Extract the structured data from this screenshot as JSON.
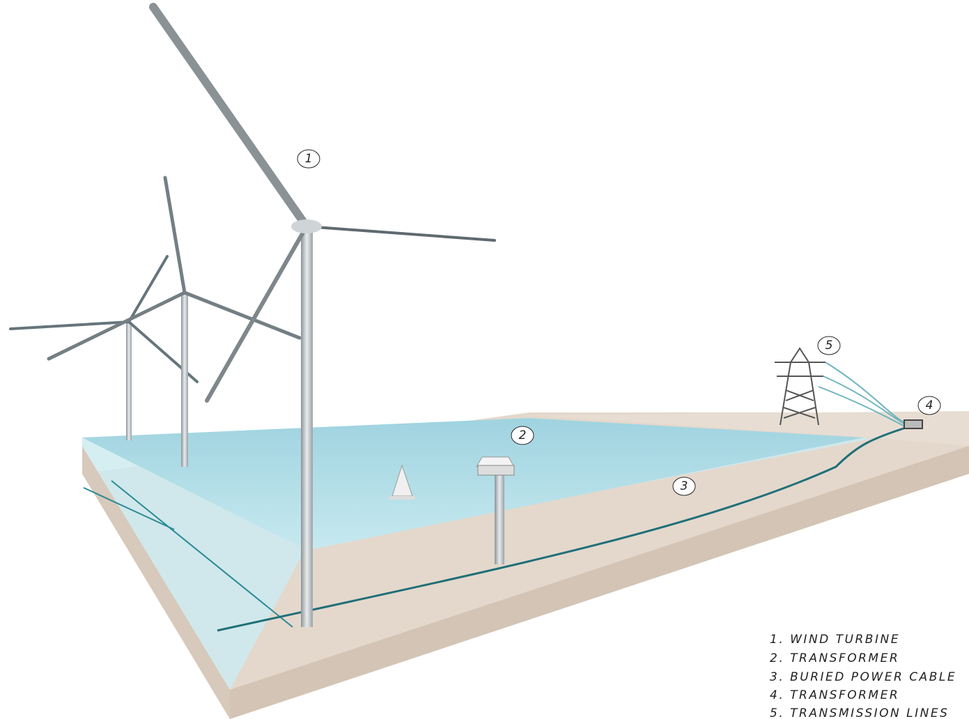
{
  "callouts": [
    "1",
    "2",
    "3",
    "4",
    "5"
  ],
  "legend": [
    "1. WIND TURBINE",
    "2. TRANSFORMER",
    "3. BURIED POWER CABLE",
    "4. TRANSFORMER",
    "5. TRANSMISSION LINES"
  ]
}
